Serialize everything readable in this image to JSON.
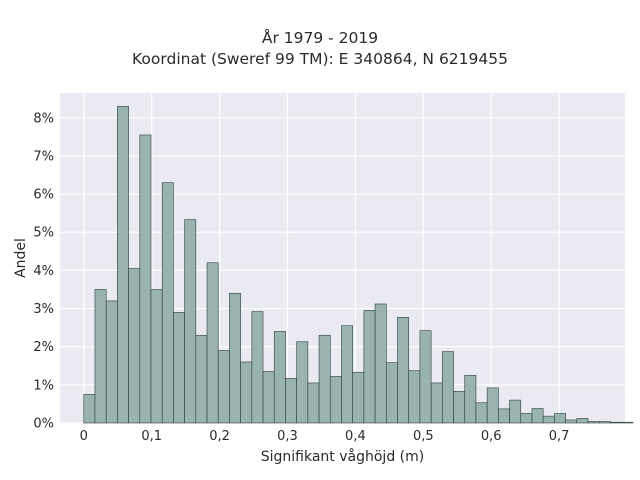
{
  "chart_data": {
    "type": "bar",
    "title": [
      "År 1979 - 2019",
      "Koordinat (Sweref 99 TM): E 340864, N 6219455"
    ],
    "xlabel": "Signifikant våghöjd (m)",
    "ylabel": "Andel",
    "xlim": [
      -0.035,
      0.797
    ],
    "ylim": [
      0,
      0.0865
    ],
    "grid": true,
    "bin_width": 0.0165,
    "bin_start": 0,
    "x_ticks": [
      {
        "value": 0,
        "label": "0"
      },
      {
        "value": 0.1,
        "label": "0,1"
      },
      {
        "value": 0.2,
        "label": "0,2"
      },
      {
        "value": 0.3,
        "label": "0,3"
      },
      {
        "value": 0.4,
        "label": "0,4"
      },
      {
        "value": 0.5,
        "label": "0,5"
      },
      {
        "value": 0.6,
        "label": "0,6"
      },
      {
        "value": 0.7,
        "label": "0,7"
      }
    ],
    "y_ticks": [
      {
        "value": 0,
        "label": "0%"
      },
      {
        "value": 0.01,
        "label": "1%"
      },
      {
        "value": 0.02,
        "label": "2%"
      },
      {
        "value": 0.03,
        "label": "3%"
      },
      {
        "value": 0.04,
        "label": "4%"
      },
      {
        "value": 0.05,
        "label": "5%"
      },
      {
        "value": 0.06,
        "label": "6%"
      },
      {
        "value": 0.07,
        "label": "7%"
      },
      {
        "value": 0.08,
        "label": "8%"
      }
    ],
    "values": [
      0.0075,
      0.035,
      0.032,
      0.083,
      0.0405,
      0.0755,
      0.035,
      0.063,
      0.029,
      0.0533,
      0.023,
      0.042,
      0.019,
      0.034,
      0.016,
      0.0292,
      0.0135,
      0.024,
      0.0117,
      0.0213,
      0.0105,
      0.023,
      0.0122,
      0.0255,
      0.0133,
      0.0295,
      0.0312,
      0.0158,
      0.0277,
      0.0137,
      0.0242,
      0.0105,
      0.0187,
      0.0083,
      0.0125,
      0.0053,
      0.0092,
      0.0037,
      0.006,
      0.0025,
      0.0038,
      0.0018,
      0.0025,
      0.0008,
      0.0012,
      0.0004,
      0.0004,
      0.0002,
      0.0002
    ],
    "colors": {
      "bar_fill": "#99b3b1",
      "bar_stroke": "#2f3f3c",
      "plot_background": "#eaeaf2",
      "grid": "#ffffff"
    }
  }
}
